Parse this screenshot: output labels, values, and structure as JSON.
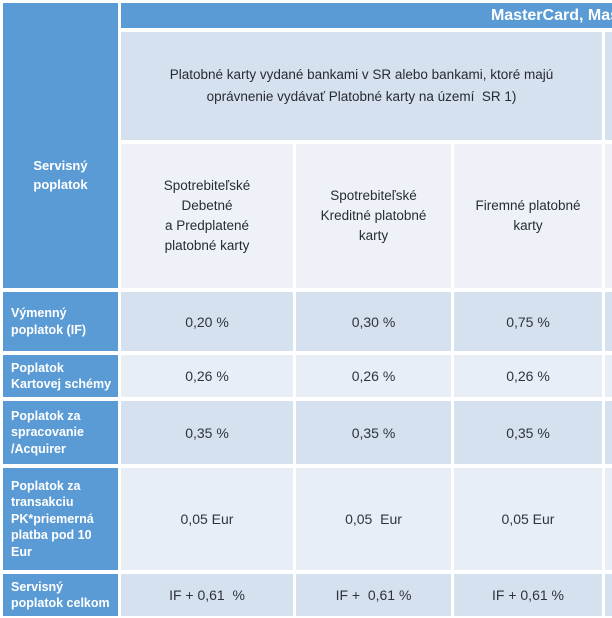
{
  "title_strip": {
    "text": "MasterCard, Mas"
  },
  "corner_cell": {
    "text": "Servisný\npoplatok"
  },
  "banner_cell": {
    "text": "Platobné karty vydané bankami v SR alebo bankami, ktoré majú\noprávnenie vydávať Platobné karty na území  SR 1)"
  },
  "column_headers": [
    {
      "label": "Spotrebiteľské\nDebetné\na Predplatené\nplatobné karty"
    },
    {
      "label": "Spotrebiteľské\nKreditné platobné\nkarty"
    },
    {
      "label": "Firemné platobné\nkarty"
    }
  ],
  "rows": [
    {
      "label": "Výmenný\npoplatok (IF)",
      "values": [
        "0,20 %",
        "0,30 %",
        "0,75 %"
      ]
    },
    {
      "label": "Poplatok\nKartovej schémy",
      "values": [
        "0,26 %",
        "0,26 %",
        "0,26 %"
      ]
    },
    {
      "label": "Poplatok za\nspracovanie\n/Acquirer",
      "values": [
        "0,35 %",
        "0,35 %",
        "0,35 %"
      ]
    },
    {
      "label": "Poplatok za\ntransakciu\nPK*priemerná\nplatba pod 10\nEur",
      "values": [
        "0,05 Eur",
        "0,05  Eur",
        "0,05 Eur"
      ]
    },
    {
      "label": "Servisný\npoplatok celkom",
      "values": [
        "IF + 0,61  %",
        "IF +  0,61 %",
        "IF + 0,61 %"
      ]
    }
  ],
  "colors": {
    "accent_blue": "#5b9bd5",
    "band_dark": "#d6e1ef",
    "band_light": "#e8eef6",
    "header_row_bg": "#eef2f8",
    "text_dark": "#2e333d",
    "text_light": "#ffffff",
    "gap_white": "#ffffff"
  }
}
